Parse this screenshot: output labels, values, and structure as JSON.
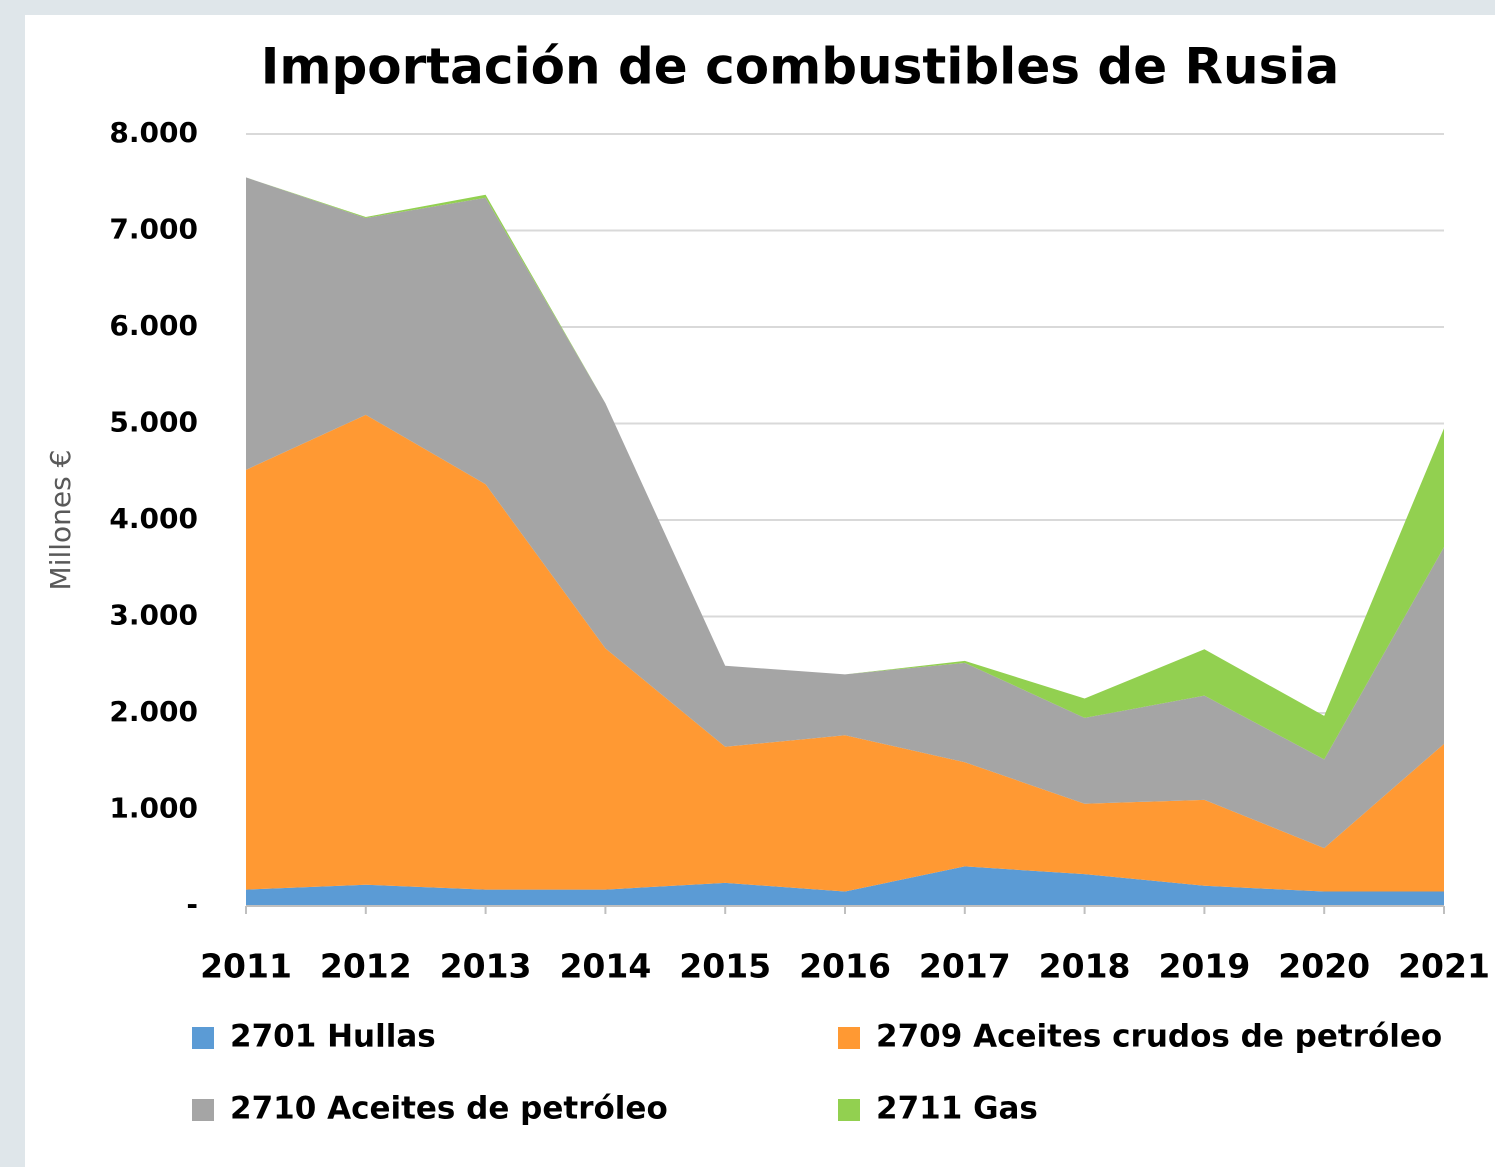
{
  "chart_data": {
    "type": "stacked_area",
    "title": "Importación de combustibles de Rusia",
    "y_label": "Millones €",
    "categories": [
      "2011",
      "2012",
      "2013",
      "2014",
      "2015",
      "2016",
      "2017",
      "2018",
      "2019",
      "2020",
      "2021"
    ],
    "series": [
      {
        "name": "2701 Hullas",
        "color": "#5b9bd5",
        "values": [
          170,
          220,
          170,
          170,
          240,
          150,
          410,
          330,
          210,
          150,
          150
        ]
      },
      {
        "name": "2709 Aceites crudos de petróleo",
        "color": "#ff9933",
        "values": [
          4350,
          4870,
          4200,
          2500,
          1410,
          1620,
          1080,
          730,
          890,
          450,
          1530
        ]
      },
      {
        "name": "2710 Aceites de petróleo",
        "color": "#a5a5a5",
        "values": [
          3030,
          2040,
          2970,
          2540,
          840,
          630,
          1030,
          890,
          1080,
          920,
          2040
        ]
      },
      {
        "name": "2711 Gas",
        "color": "#92d050",
        "values": [
          0,
          10,
          30,
          0,
          0,
          0,
          20,
          200,
          480,
          450,
          1230
        ]
      }
    ],
    "ylim": [
      0,
      8000
    ],
    "yticks": [
      {
        "value": 0,
        "label": "-"
      },
      {
        "value": 1000,
        "label": "1.000"
      },
      {
        "value": 2000,
        "label": "2.000"
      },
      {
        "value": 3000,
        "label": "3.000"
      },
      {
        "value": 4000,
        "label": "4.000"
      },
      {
        "value": 5000,
        "label": "5.000"
      },
      {
        "value": 6000,
        "label": "6.000"
      },
      {
        "value": 7000,
        "label": "7.000"
      },
      {
        "value": 8000,
        "label": "8.000"
      }
    ],
    "grid": true
  }
}
